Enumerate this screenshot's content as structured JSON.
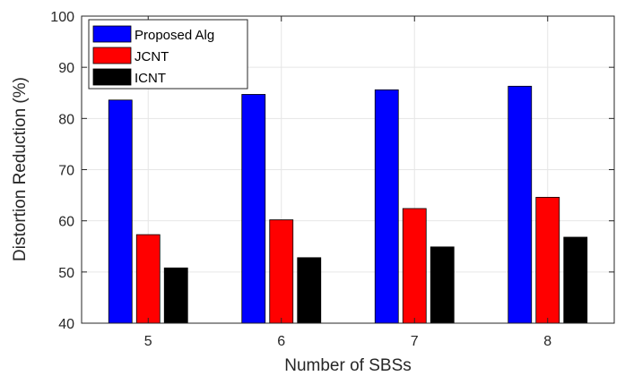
{
  "chart_data": {
    "type": "bar",
    "categories": [
      "5",
      "6",
      "7",
      "8"
    ],
    "series": [
      {
        "name": "Proposed Alg",
        "values": [
          83.6,
          84.7,
          85.6,
          86.3
        ],
        "color": "#0000ff"
      },
      {
        "name": "JCNT",
        "values": [
          57.3,
          60.2,
          62.4,
          64.6
        ],
        "color": "#ff0000"
      },
      {
        "name": "ICNT",
        "values": [
          50.8,
          52.8,
          54.9,
          56.8
        ],
        "color": "#000000"
      }
    ],
    "title": "",
    "xlabel": "Number of SBSs",
    "ylabel": "Distortion Reduction (%)",
    "ylim": [
      40,
      100
    ],
    "yticks": [
      40,
      50,
      60,
      70,
      80,
      90,
      100
    ],
    "grid": true,
    "legend_position": "top-left"
  }
}
